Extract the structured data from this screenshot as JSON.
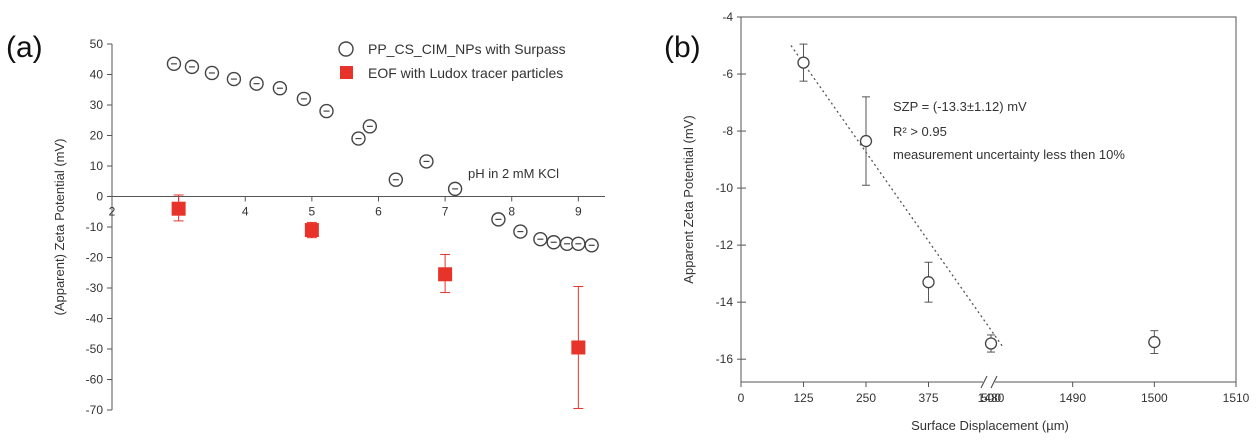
{
  "chart_data": [
    {
      "panel": "(a)",
      "type": "scatter",
      "xlabel": "",
      "ylabel": "(Apparent) Zeta Potential (mV)",
      "xlim": [
        2,
        9.4
      ],
      "ylim": [
        -70,
        50
      ],
      "xticks": [
        "2",
        "3",
        "4",
        "5",
        "6",
        "7",
        "8",
        "9"
      ],
      "yticks": [
        "50",
        "40",
        "30",
        "20",
        "10",
        "0",
        "-10",
        "-20",
        "-30",
        "-40",
        "-50",
        "-60",
        "-70"
      ],
      "x_axis_at_zero": true,
      "annotation": "pH in 2 mM KCl",
      "legend_position": "top-right",
      "series": [
        {
          "name": "PP_CS_CIM_NPs with Surpass",
          "marker": "open-circle",
          "color": "#444444",
          "x": [
            2.93,
            3.2,
            3.5,
            3.83,
            4.17,
            4.52,
            4.88,
            5.22,
            5.7,
            5.87,
            6.26,
            6.72,
            7.15,
            7.8,
            8.13,
            8.43,
            8.63,
            8.83,
            9.0,
            9.2
          ],
          "y": [
            43.5,
            42.5,
            40.5,
            38.5,
            37,
            35.5,
            32,
            28,
            19,
            23,
            5.5,
            11.5,
            2.5,
            -7.5,
            -11.5,
            -14,
            -15,
            -15.5,
            -15.5,
            -16
          ]
        },
        {
          "name": "EOF with Ludox tracer particles",
          "marker": "filled-square",
          "color": "#e8332a",
          "x": [
            3.0,
            5.0,
            7.0,
            9.0
          ],
          "y": [
            -4,
            -11,
            -25.5,
            -49.5
          ],
          "err_low": [
            4,
            2.5,
            6,
            20
          ],
          "err_high": [
            4.5,
            2.5,
            6.5,
            20
          ]
        }
      ]
    },
    {
      "panel": "(b)",
      "type": "scatter",
      "xlabel": "Surface Displacement (µm)",
      "ylabel": "Apparent Zeta Potential (mV)",
      "xticks": [
        "0",
        "125",
        "250",
        "375",
        "500",
        "1480",
        "1490",
        "1500",
        "1510"
      ],
      "yticks": [
        "-4",
        "-6",
        "-8",
        "-10",
        "-12",
        "-14",
        "-16"
      ],
      "ylim": [
        -16.8,
        -4
      ],
      "x_axis_break_between": [
        "500",
        "1480"
      ],
      "annotation": [
        "SZP = (-13.3±1.12) mV",
        "R² > 0.95",
        "measurement uncertainty less then 10%"
      ],
      "series": [
        {
          "name": "",
          "marker": "open-circle",
          "color": "#444444",
          "x": [
            125,
            250,
            375,
            500,
            1500
          ],
          "y": [
            -5.6,
            -8.35,
            -13.3,
            -15.45,
            -15.4
          ],
          "err": [
            0.65,
            1.55,
            0.7,
            0.3,
            0.4
          ]
        },
        {
          "name": "",
          "type": "dotted-fit-line",
          "color": "#444444",
          "x": [
            100,
            525
          ],
          "y": [
            -5.0,
            -15.6
          ]
        }
      ]
    }
  ]
}
